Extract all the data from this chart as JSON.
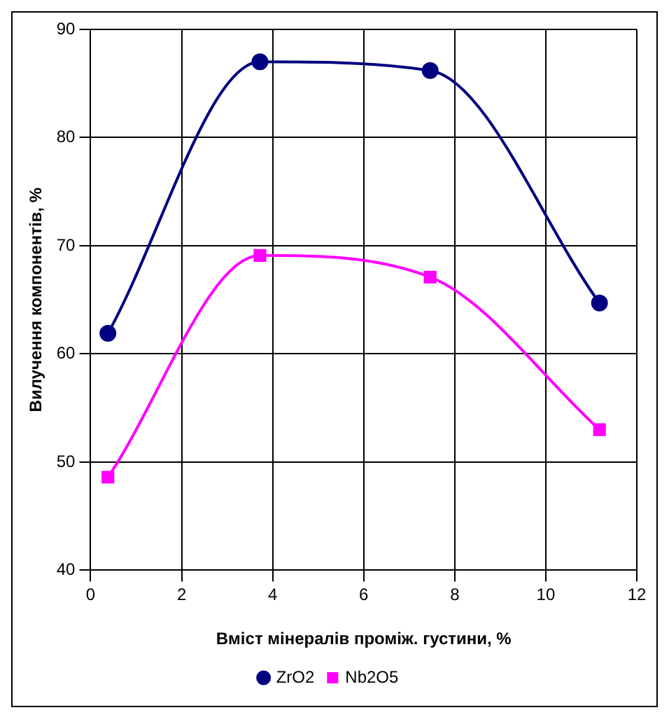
{
  "chart_data": {
    "type": "line",
    "xlabel": "Вміст мінералів проміж. густини, %",
    "ylabel": "Вилучення компонентів, %",
    "xlim": [
      0,
      12
    ],
    "xticks": [
      0,
      2,
      4,
      6,
      8,
      10,
      12
    ],
    "ylim": [
      40,
      90
    ],
    "yticks": [
      40,
      50,
      60,
      70,
      80,
      90
    ],
    "grid": true,
    "legend": "bottom",
    "series": [
      {
        "name": "ZrO2",
        "color": "#000080",
        "marker": "circle",
        "x": [
          0.38,
          3.72,
          7.46,
          11.18
        ],
        "values": [
          61.9,
          87.0,
          86.2,
          64.7
        ]
      },
      {
        "name": "Nb2O5",
        "color": "#ff00ff",
        "marker": "square",
        "x": [
          0.38,
          3.72,
          7.46,
          11.18
        ],
        "values": [
          48.6,
          69.1,
          67.1,
          53.0
        ]
      }
    ]
  }
}
